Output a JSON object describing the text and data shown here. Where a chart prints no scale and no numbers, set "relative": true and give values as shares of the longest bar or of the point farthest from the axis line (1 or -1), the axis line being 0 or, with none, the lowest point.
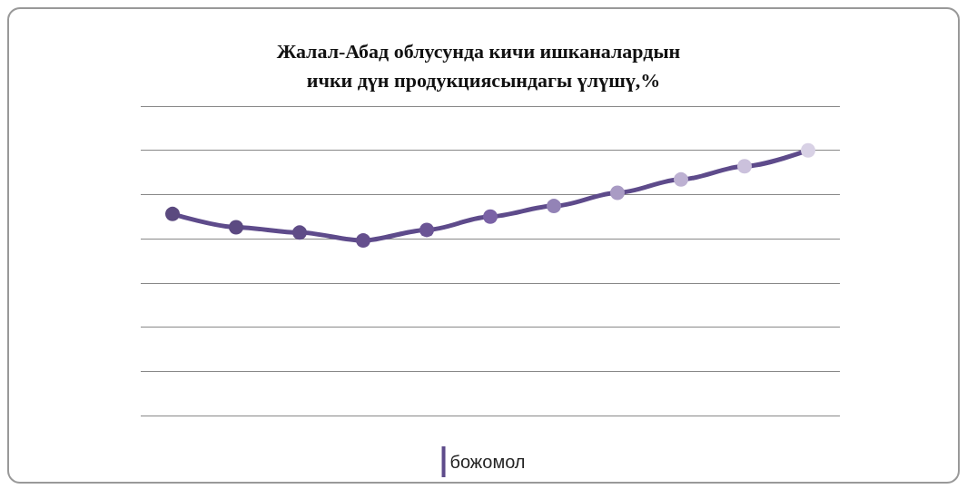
{
  "chart_data": {
    "type": "line",
    "title": "Жалал-Абад облусунда кичи ишканалардын  ички дүн продукциясындагы үлүшү,%",
    "relative": true,
    "categories": [
      null,
      null,
      null,
      null,
      null,
      null,
      null,
      null,
      null,
      null,
      null
    ],
    "series": [
      {
        "name": "божомол",
        "color": "#5e4b8b",
        "colors": [
          "#5b4a7f",
          "#5c4a82",
          "#5f4c87",
          "#654f8d",
          "#6b5595",
          "#7a62a6",
          "#9383b6",
          "#a99bc4",
          "#bdb1d2",
          "#cbc1dc",
          "#d8d1e5"
        ],
        "values": [
          0.76,
          0.71,
          0.69,
          0.66,
          0.7,
          0.75,
          0.79,
          0.84,
          0.89,
          0.94,
          1
        ]
      }
    ],
    "grid": "y",
    "legend": "bottom",
    "marker": "circle"
  }
}
